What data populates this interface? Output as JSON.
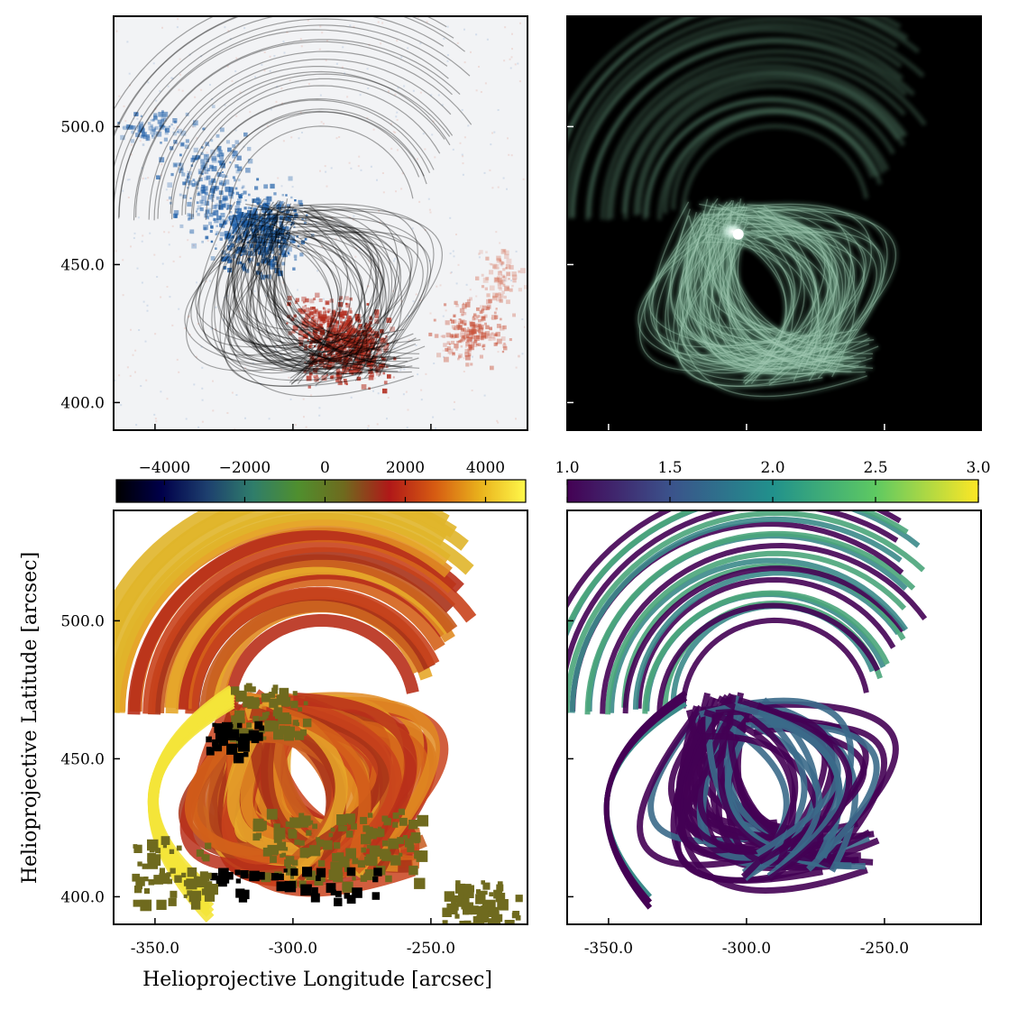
{
  "figure": {
    "xlabel": "Helioprojective Longitude [arcsec]",
    "ylabel": "Helioprojective Latitude [arcsec]"
  },
  "colorbars": {
    "velocity": {
      "ticks": [
        "−4000",
        "−2000",
        "0",
        "2000",
        "4000"
      ],
      "tick_values": [
        -4000,
        -2000,
        0,
        2000,
        4000
      ],
      "range": [
        -5200,
        5000
      ],
      "colormap": [
        "#000000",
        "#00004a",
        "#1d3f6e",
        "#2f7d6b",
        "#4f8f2e",
        "#6f6a1e",
        "#b01818",
        "#d65b12",
        "#e9b21c",
        "#fff84a"
      ]
    },
    "ratio": {
      "ticks": [
        "1.0",
        "1.5",
        "2.0",
        "2.5",
        "3.0"
      ],
      "tick_values": [
        1.0,
        1.5,
        2.0,
        2.5,
        3.0
      ],
      "range": [
        1.0,
        3.0
      ],
      "colormap": [
        "#440154",
        "#3b528b",
        "#21918c",
        "#5ec962",
        "#fde725"
      ]
    }
  },
  "chart_data": [
    {
      "type": "heatmap",
      "panel": "top-left",
      "description_of_layers": "magnetogram with traced field lines",
      "xlim": [
        -365,
        -215
      ],
      "ylim": [
        390,
        540
      ],
      "x_ticks": [
        -350,
        -300,
        -250
      ],
      "y_ticks": [
        400.0,
        450.0,
        500.0
      ],
      "y_tick_labels": [
        "400.0",
        "450.0",
        "500.0"
      ],
      "show_x_tick_labels": false,
      "show_y_tick_labels": true,
      "colors": {
        "negative": "#1f5fa8",
        "positive": "#b32d1e",
        "background": "#f2f3f5",
        "lines": "#000000"
      }
    },
    {
      "type": "heatmap",
      "panel": "top-right",
      "xlim": [
        -365,
        -215
      ],
      "ylim": [
        390,
        540
      ],
      "x_ticks": [
        -350,
        -300,
        -250
      ],
      "y_ticks": [
        400.0,
        450.0,
        500.0
      ],
      "show_x_tick_labels": false,
      "show_y_tick_labels": false,
      "colors": {
        "background": "#000000",
        "loops": "#5f8f75",
        "bright": "#e8fff4"
      }
    },
    {
      "type": "heatmap",
      "panel": "bottom-left",
      "xlim": [
        -365,
        -215
      ],
      "ylim": [
        390,
        540
      ],
      "x_ticks": [
        -350,
        -300,
        -250
      ],
      "x_tick_labels": [
        "-350.0",
        "-300.0",
        "-250.0"
      ],
      "y_ticks": [
        400.0,
        450.0,
        500.0
      ],
      "y_tick_labels": [
        "400.0",
        "450.0",
        "500.0"
      ],
      "show_x_tick_labels": true,
      "show_y_tick_labels": true,
      "colorbar": "velocity"
    },
    {
      "type": "heatmap",
      "panel": "bottom-right",
      "xlim": [
        -365,
        -215
      ],
      "ylim": [
        390,
        540
      ],
      "x_ticks": [
        -350,
        -300,
        -250
      ],
      "x_tick_labels": [
        "-350.0",
        "-300.0",
        "-250.0"
      ],
      "y_ticks": [
        400.0,
        450.0,
        500.0
      ],
      "show_x_tick_labels": true,
      "show_y_tick_labels": false,
      "colorbar": "ratio"
    }
  ]
}
